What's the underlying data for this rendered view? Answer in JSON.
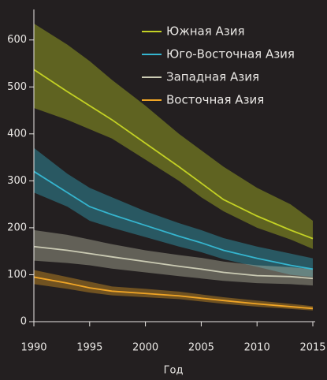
{
  "chart_data": {
    "type": "line",
    "xlabel": "Год",
    "x": [
      1990,
      1993,
      1995,
      1997,
      2000,
      2003,
      2005,
      2007,
      2010,
      2013,
      2015
    ],
    "xlim": [
      1990,
      2015
    ],
    "xticks": [
      1990,
      1995,
      2000,
      2005,
      2010,
      2015
    ],
    "ylim": [
      0,
      665
    ],
    "yticks": [
      0,
      100,
      200,
      300,
      400,
      500,
      600
    ],
    "legend": "top-right",
    "series": [
      {
        "name": "Южная Азия",
        "color": "#c3d124",
        "values": [
          537,
          490,
          460,
          430,
          380,
          330,
          295,
          260,
          225,
          195,
          177
        ],
        "upper": [
          635,
          590,
          555,
          515,
          460,
          400,
          365,
          330,
          285,
          250,
          215
        ],
        "lower": [
          455,
          430,
          410,
          390,
          345,
          300,
          265,
          235,
          200,
          175,
          155
        ]
      },
      {
        "name": "Юго-Восточная Азия",
        "color": "#35b5cf",
        "values": [
          320,
          275,
          245,
          228,
          205,
          182,
          168,
          152,
          135,
          120,
          112
        ],
        "upper": [
          370,
          315,
          285,
          265,
          235,
          210,
          195,
          178,
          160,
          145,
          135
        ],
        "lower": [
          275,
          245,
          215,
          200,
          180,
          160,
          148,
          133,
          117,
          100,
          95
        ]
      },
      {
        "name": "Западная Азия",
        "color": "#cbcbb4",
        "values": [
          160,
          152,
          145,
          138,
          128,
          118,
          112,
          105,
          98,
          96,
          92
        ],
        "upper": [
          195,
          185,
          175,
          165,
          152,
          142,
          136,
          128,
          120,
          116,
          112
        ],
        "lower": [
          130,
          125,
          120,
          113,
          105,
          97,
          92,
          87,
          82,
          80,
          77
        ]
      },
      {
        "name": "Восточная Азия",
        "color": "#f0a526",
        "values": [
          95,
          82,
          72,
          65,
          60,
          55,
          50,
          45,
          38,
          32,
          28
        ],
        "upper": [
          110,
          95,
          85,
          75,
          70,
          64,
          58,
          52,
          45,
          38,
          33
        ],
        "lower": [
          80,
          70,
          62,
          56,
          52,
          48,
          43,
          38,
          32,
          27,
          24
        ]
      }
    ]
  }
}
